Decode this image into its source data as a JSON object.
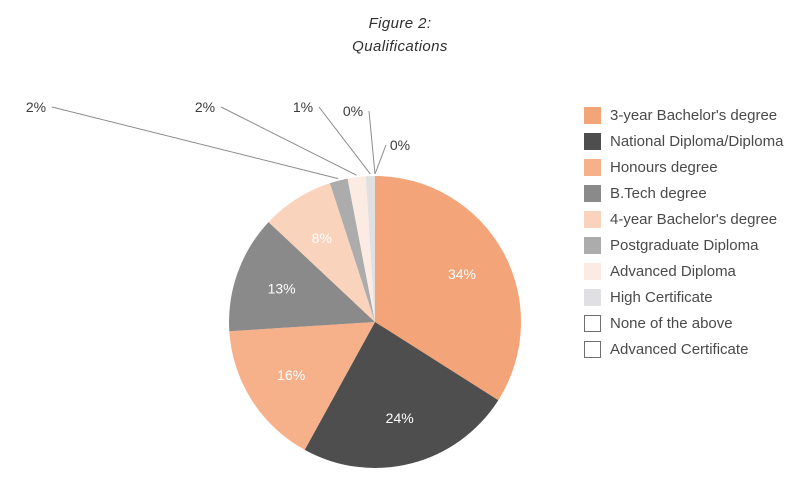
{
  "title": {
    "line1": "Figure 2:",
    "line2": "Qualifications"
  },
  "chart_data": {
    "type": "pie",
    "title": "Figure 2: Qualifications",
    "legend_position": "right",
    "value_unit": "%",
    "start_angle_deg": 0,
    "direction": "clockwise",
    "slices": [
      {
        "label": "3-year Bachelor's degree",
        "value": 34,
        "color": "#F3A478"
      },
      {
        "label": "National Diploma/Diploma",
        "value": 24,
        "color": "#4E4E4E"
      },
      {
        "label": "Honours degree",
        "value": 16,
        "color": "#F6B08A"
      },
      {
        "label": "B.Tech degree",
        "value": 13,
        "color": "#8A8A8A"
      },
      {
        "label": "4-year Bachelor's degree",
        "value": 8,
        "color": "#F9D3BC"
      },
      {
        "label": "Postgraduate Diploma",
        "value": 2,
        "color": "#ACACAC"
      },
      {
        "label": "Advanced Diploma",
        "value": 2,
        "color": "#FBEBE2"
      },
      {
        "label": "High Certificate",
        "value": 1,
        "color": "#E0E0E2"
      },
      {
        "label": "None of the above",
        "value": 0,
        "color": "#FFFFFF"
      },
      {
        "label": "Advanced Certificate",
        "value": 0,
        "color": "#FFFFFF"
      }
    ]
  }
}
